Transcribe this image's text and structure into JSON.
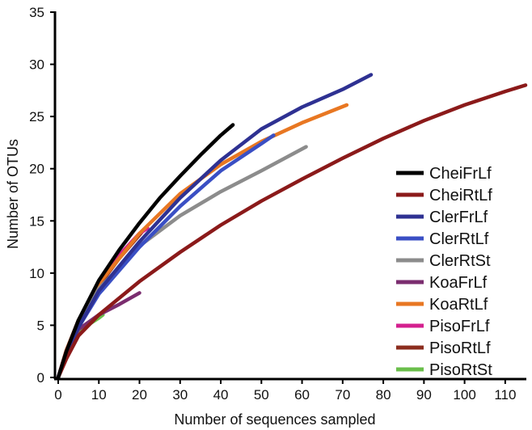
{
  "chart_data": {
    "type": "line",
    "xlabel": "Number of sequences sampled",
    "ylabel": "Number of OTUs",
    "xlim": [
      0,
      115
    ],
    "ylim": [
      0,
      35
    ],
    "x_ticks": [
      0,
      10,
      20,
      30,
      40,
      50,
      60,
      70,
      80,
      90,
      100,
      110
    ],
    "y_ticks": [
      0,
      5,
      10,
      15,
      20,
      25,
      30,
      35
    ],
    "grid": false,
    "legend_position": "right",
    "series": [
      {
        "name": "CheiFrLf",
        "color": "#000000",
        "x": [
          0,
          2,
          5,
          10,
          15,
          20,
          25,
          30,
          35,
          40,
          43
        ],
        "y": [
          0,
          2.5,
          5.5,
          9.3,
          12.2,
          14.8,
          17.2,
          19.3,
          21.3,
          23.2,
          24.2
        ]
      },
      {
        "name": "CheiRtLf",
        "color": "#8b1a1a",
        "x": [
          0,
          2,
          5,
          10,
          20,
          30,
          40,
          50,
          60,
          70,
          80,
          90,
          100,
          110,
          115
        ],
        "y": [
          0,
          1.8,
          4.0,
          6.0,
          9.2,
          12.0,
          14.6,
          16.9,
          19.0,
          21.0,
          22.9,
          24.6,
          26.1,
          27.4,
          28.0
        ]
      },
      {
        "name": "ClerFrLf",
        "color": "#2e3192",
        "x": [
          0,
          2,
          5,
          10,
          20,
          30,
          40,
          50,
          60,
          70,
          77
        ],
        "y": [
          0,
          2.3,
          4.8,
          8.3,
          13.0,
          17.2,
          20.8,
          23.8,
          25.9,
          27.6,
          29.0
        ]
      },
      {
        "name": "ClerRtLf",
        "color": "#3a4fc4",
        "x": [
          0,
          2,
          5,
          10,
          20,
          30,
          40,
          50,
          53
        ],
        "y": [
          0,
          2.3,
          4.8,
          8.0,
          12.5,
          16.4,
          19.8,
          22.4,
          23.2
        ]
      },
      {
        "name": "ClerRtSt",
        "color": "#8c8c8c",
        "x": [
          0,
          2,
          5,
          10,
          20,
          30,
          40,
          50,
          61
        ],
        "y": [
          0,
          2.5,
          5.0,
          8.5,
          12.6,
          15.5,
          17.8,
          19.8,
          22.1
        ]
      },
      {
        "name": "KoaFrLf",
        "color": "#7b2d6f",
        "x": [
          0,
          2,
          5,
          10,
          15,
          20
        ],
        "y": [
          0,
          2.5,
          4.6,
          6.0,
          7.0,
          8.1
        ]
      },
      {
        "name": "KoaRtLf",
        "color": "#e87722",
        "x": [
          0,
          2,
          5,
          10,
          20,
          30,
          40,
          50,
          60,
          71
        ],
        "y": [
          0,
          2.6,
          5.4,
          9.0,
          13.8,
          17.6,
          20.4,
          22.6,
          24.4,
          26.1
        ]
      },
      {
        "name": "PisoFrLf",
        "color": "#d4208f",
        "x": [
          0,
          2,
          5,
          10,
          15,
          20,
          22
        ],
        "y": [
          0,
          2.6,
          5.3,
          9.0,
          11.7,
          13.8,
          14.3
        ]
      },
      {
        "name": "PisoRtLf",
        "color": "#8b2d1e",
        "x": [
          0,
          2,
          5,
          10,
          15,
          21
        ],
        "y": [
          0,
          2.6,
          5.5,
          8.8,
          11.4,
          14.1
        ]
      },
      {
        "name": "PisoRtSt",
        "color": "#6abf4b",
        "x": [
          0,
          2,
          4,
          6,
          8,
          10,
          11
        ],
        "y": [
          0,
          2.0,
          3.6,
          4.6,
          5.2,
          5.7,
          6.0
        ]
      }
    ]
  }
}
